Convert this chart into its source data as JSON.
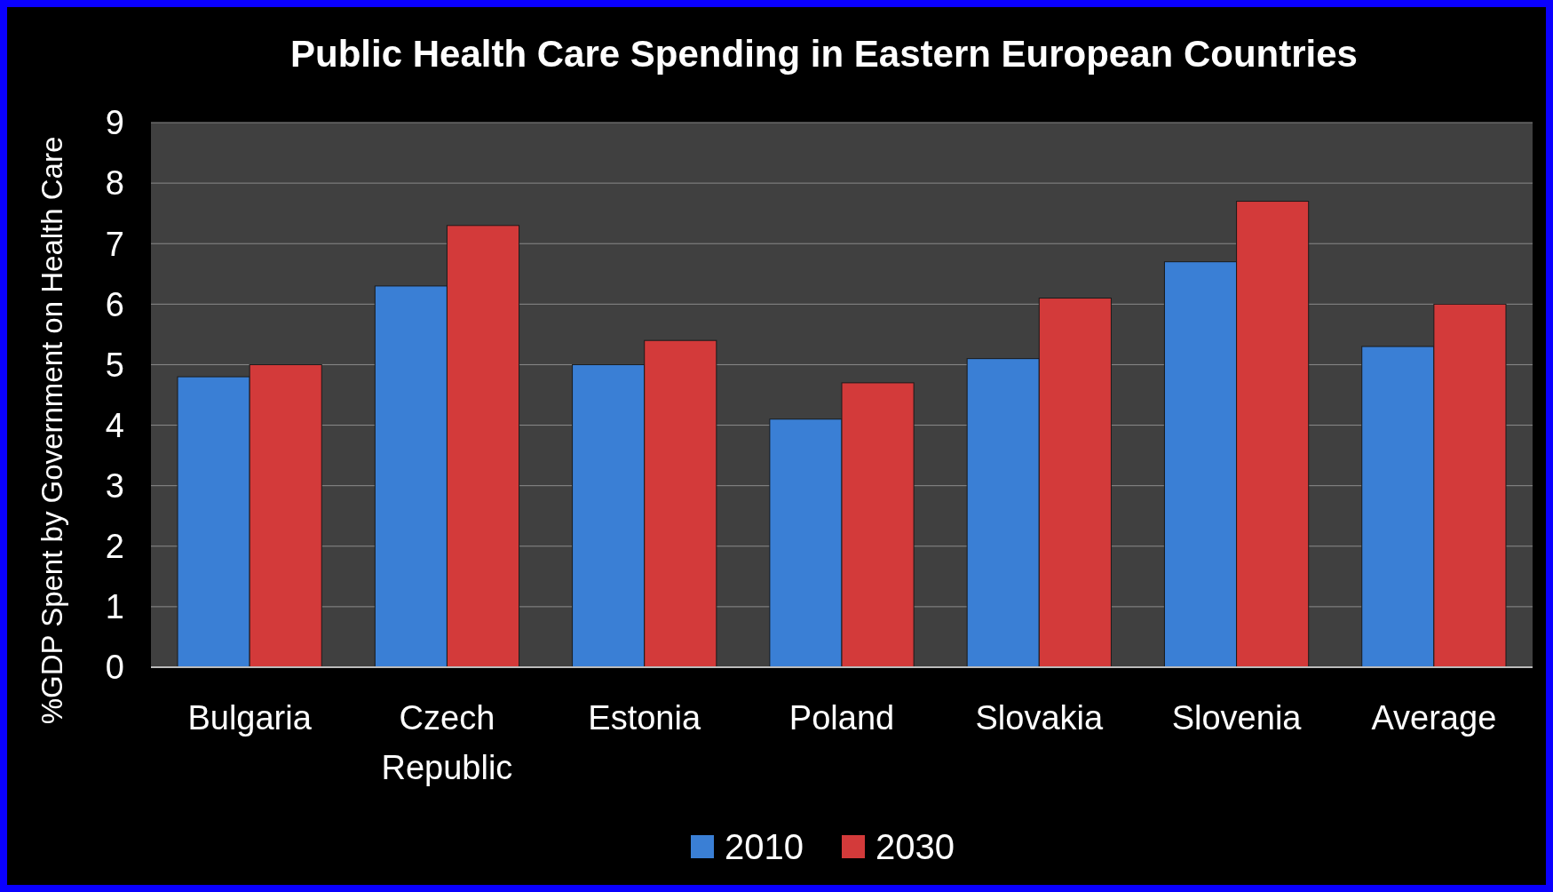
{
  "chart_data": {
    "type": "bar",
    "title": "Public Health Care Spending in Eastern European Countries",
    "ylabel": "%GDP Spent by Government on Health Care",
    "categories": [
      "Bulgaria",
      "Czech Republic",
      "Estonia",
      "Poland",
      "Slovakia",
      "Slovenia",
      "Average"
    ],
    "series": [
      {
        "name": "2010",
        "color": "#3a7fd5",
        "values": [
          4.8,
          6.3,
          5.0,
          4.1,
          5.1,
          6.7,
          5.3
        ]
      },
      {
        "name": "2030",
        "color": "#d33a3a",
        "values": [
          5.0,
          7.3,
          5.4,
          4.7,
          6.1,
          7.7,
          6.0
        ]
      }
    ],
    "ylim": [
      0,
      9
    ],
    "yticks": [
      0,
      1,
      2,
      3,
      4,
      5,
      6,
      7,
      8,
      9
    ],
    "grid": "y",
    "legend": "bottom"
  }
}
